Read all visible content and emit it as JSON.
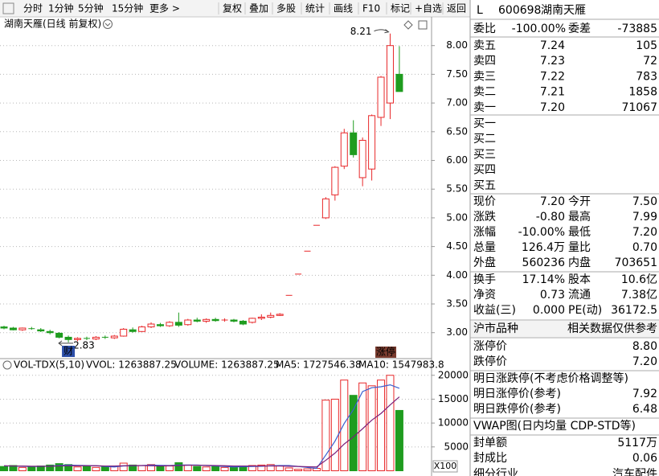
{
  "toolbar": {
    "left": [
      "分时",
      "1分钟",
      "5分钟",
      "15分钟",
      "更多 >"
    ],
    "right": [
      "复权",
      "叠加",
      "多股",
      "统计",
      "画线",
      "F10",
      "标记",
      "+自选",
      "返回"
    ]
  },
  "chart_data": [
    {
      "type": "candlestick",
      "title": "湖南天雁(日线 前复权)",
      "up_color": "#e8282a",
      "down_color": "#1f9c1f",
      "open": [
        3.1,
        3.08,
        3.05,
        3.07,
        3.05,
        3.02,
        2.99,
        2.92,
        2.88,
        2.9,
        2.89,
        2.92,
        2.91,
        2.94,
        3.05,
        3.02,
        3.1,
        3.14,
        3.12,
        3.18,
        3.14,
        3.22,
        3.2,
        3.23,
        3.21,
        3.22,
        3.2,
        3.18,
        3.25,
        3.27,
        3.3,
        3.65,
        4.02,
        4.42,
        4.87,
        5.0,
        5.4,
        5.9,
        6.48,
        5.7,
        5.85,
        6.75,
        7.0,
        7.5
      ],
      "high": [
        3.12,
        3.1,
        3.09,
        3.1,
        3.08,
        3.05,
        3.01,
        2.95,
        2.92,
        2.93,
        2.94,
        2.95,
        2.96,
        3.08,
        3.09,
        3.12,
        3.18,
        3.17,
        3.2,
        3.35,
        3.24,
        3.26,
        3.25,
        3.26,
        3.25,
        3.24,
        3.22,
        3.26,
        3.32,
        3.35,
        3.34,
        3.65,
        4.02,
        4.42,
        4.87,
        5.36,
        5.9,
        6.55,
        6.7,
        6.4,
        6.8,
        7.47,
        8.21,
        7.99
      ],
      "low": [
        3.06,
        3.04,
        3.03,
        3.05,
        3.01,
        2.97,
        2.9,
        2.83,
        2.85,
        2.87,
        2.87,
        2.89,
        2.89,
        2.93,
        3.0,
        3.01,
        3.08,
        3.1,
        3.1,
        3.1,
        3.12,
        3.18,
        3.17,
        3.19,
        3.19,
        3.18,
        3.13,
        3.16,
        3.22,
        3.25,
        3.29,
        3.65,
        4.02,
        4.42,
        4.87,
        4.98,
        5.3,
        5.85,
        6.05,
        5.55,
        5.65,
        6.6,
        6.72,
        7.2
      ],
      "close": [
        3.08,
        3.05,
        3.08,
        3.06,
        3.03,
        3.0,
        2.92,
        2.88,
        2.9,
        2.89,
        2.92,
        2.91,
        2.94,
        3.06,
        3.02,
        3.1,
        3.15,
        3.12,
        3.18,
        3.13,
        3.22,
        3.2,
        3.23,
        3.21,
        3.22,
        3.2,
        3.15,
        3.25,
        3.27,
        3.3,
        3.32,
        3.65,
        4.02,
        4.42,
        4.87,
        5.33,
        5.88,
        6.48,
        6.1,
        6.35,
        6.78,
        7.45,
        8.0,
        7.2
      ],
      "ylim": [
        2.59,
        8.29
      ],
      "yticks": [
        {
          "value": 3,
          "label": "3.00"
        },
        {
          "value": 3.5,
          "label": "3.50"
        },
        {
          "value": 4,
          "label": "4.00"
        },
        {
          "value": 4.5,
          "label": "4.50"
        },
        {
          "value": 5,
          "label": "5.00"
        },
        {
          "value": 5.5,
          "label": "5.50"
        },
        {
          "value": 6,
          "label": "6.00"
        },
        {
          "value": 6.5,
          "label": "6.50"
        },
        {
          "value": 7,
          "label": "7.00"
        },
        {
          "value": 7.5,
          "label": "7.50"
        },
        {
          "value": 8,
          "label": "8.00"
        }
      ],
      "grid": true,
      "annotations": [
        {
          "value": 8.21,
          "label": "8.21"
        },
        {
          "value": 2.83,
          "label": "2.83"
        }
      ],
      "markers": [
        "财",
        "涨停"
      ]
    },
    {
      "type": "bar",
      "legend": [
        "VOL-TDX(5,10)",
        "VVOL: 1263887.25",
        "VOLUME: 1263887.25",
        "MA5: 1727546.38",
        "MA10: 1547983.8"
      ],
      "unit": "X100",
      "values": [
        900,
        1100,
        700,
        800,
        1000,
        1200,
        1500,
        1300,
        800,
        900,
        700,
        800,
        900,
        1600,
        1200,
        1100,
        1300,
        900,
        1000,
        1700,
        1200,
        900,
        800,
        900,
        700,
        800,
        1000,
        1100,
        1200,
        1300,
        1000,
        600,
        300,
        400,
        500,
        14800,
        15000,
        19000,
        15800,
        18400,
        17800,
        19000,
        20000,
        12639
      ],
      "series": [
        {
          "color": "#3a5fd0",
          "values": [
            1000,
            1000,
            950,
            900,
            900,
            1000,
            1100,
            1200,
            1150,
            1100,
            1050,
            900,
            800,
            1000,
            1050,
            1100,
            1200,
            1150,
            1100,
            1200,
            1200,
            1200,
            1100,
            1000,
            900,
            800,
            850,
            900,
            950,
            1050,
            1100,
            1100,
            900,
            700,
            500,
            3300,
            6200,
            9900,
            12800,
            16600,
            17400,
            17600,
            18000,
            17275
          ]
        },
        {
          "color": "#7a1f7a",
          "values": [
            1050,
            1000,
            1000,
            950,
            950,
            950,
            1000,
            1050,
            1050,
            1050,
            1050,
            1000,
            1000,
            1050,
            1100,
            1100,
            1050,
            1000,
            1050,
            1100,
            1150,
            1150,
            1150,
            1100,
            1050,
            1000,
            1000,
            1000,
            1000,
            1000,
            1000,
            950,
            900,
            850,
            800,
            2200,
            3700,
            5600,
            7100,
            8800,
            10600,
            12000,
            13800,
            15480
          ]
        }
      ],
      "ylim": [
        0,
        20800
      ],
      "yticks": [
        5000,
        10000,
        15000,
        20000
      ],
      "grid": true
    }
  ],
  "quote_panel": {
    "code_marker": "L",
    "code": "600698",
    "name": "湖南天雁",
    "ratio_row": [
      "委比",
      "-100.00%",
      "委差",
      "-73885"
    ],
    "sell_rows": [
      [
        "卖五",
        "7.24",
        "105"
      ],
      [
        "卖四",
        "7.23",
        "72"
      ],
      [
        "卖三",
        "7.22",
        "783"
      ],
      [
        "卖二",
        "7.21",
        "1858"
      ],
      [
        "卖一",
        "7.20",
        "71067"
      ]
    ],
    "buy_rows": [
      "买一",
      "买二",
      "买三",
      "买四",
      "买五"
    ],
    "quote_rows": [
      [
        "现价",
        "7.20",
        "今开",
        "7.50"
      ],
      [
        "涨跌",
        "-0.80",
        "最高",
        "7.99"
      ],
      [
        "涨幅",
        "-10.00%",
        "最低",
        "7.20"
      ],
      [
        "总量",
        "126.4万",
        "量比",
        "0.70"
      ],
      [
        "外盘",
        "560236",
        "内盘",
        "703651"
      ],
      [
        "换手",
        "17.14%",
        "股本",
        "10.6亿"
      ],
      [
        "净资",
        "0.73",
        "流通",
        "7.38亿"
      ],
      [
        "收益(三)",
        "0.000",
        "PE(动)",
        "36172.5"
      ]
    ],
    "market_row": [
      "沪市品种",
      "相关数据仅供参考"
    ],
    "limit_rows": [
      [
        "涨停价",
        "8.80"
      ],
      [
        "跌停价",
        "7.20"
      ]
    ],
    "next_title": "明日涨跌停(不考虑价格调整等)",
    "next_rows": [
      [
        "明日涨停价(参考)",
        "7.92"
      ],
      [
        "明日跌停价(参考)",
        "6.48"
      ]
    ],
    "vwap_title": "VWAP图(日内均量 CDP-STD等)",
    "seal_rows": [
      [
        "封单额",
        "5117万"
      ],
      [
        "封成比",
        "0.06"
      ]
    ],
    "industry_row": [
      "细分行业",
      "汽车配件"
    ]
  }
}
